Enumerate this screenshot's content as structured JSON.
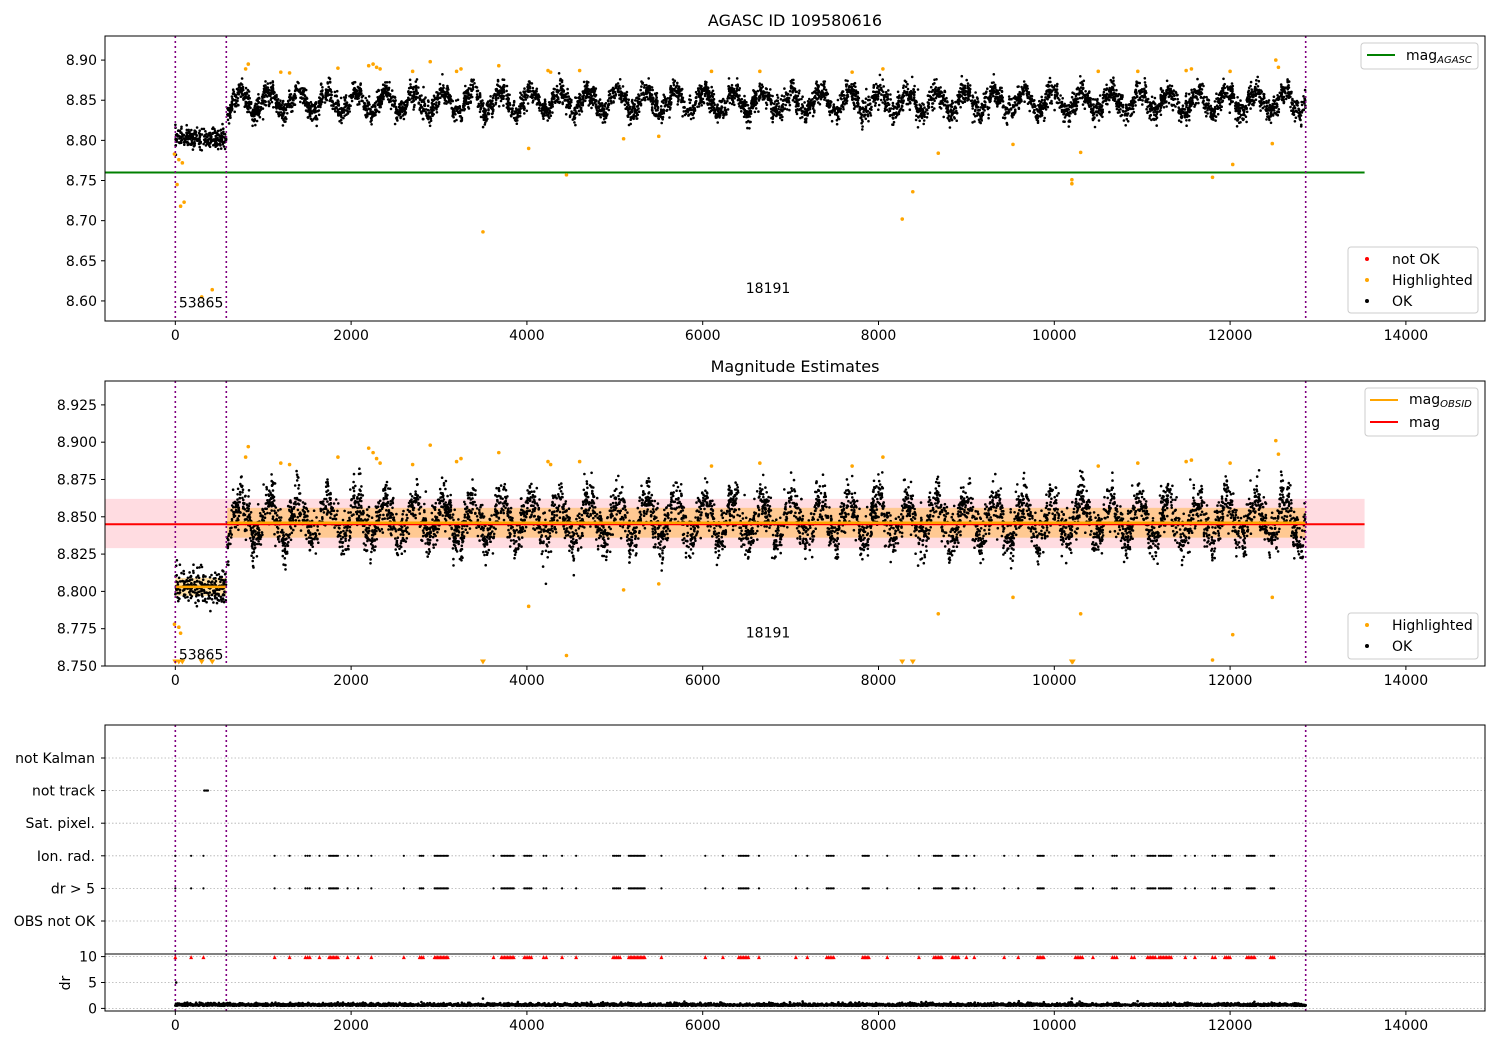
{
  "chart_data": [
    {
      "type": "scatter",
      "title": "AGASC ID 109580616",
      "xlim": [
        -800,
        14900
      ],
      "ylim": [
        8.575,
        8.93
      ],
      "x_ticks": [
        0,
        2000,
        4000,
        6000,
        8000,
        10000,
        12000,
        14000
      ],
      "y_ticks": [
        8.6,
        8.65,
        8.7,
        8.75,
        8.8,
        8.85,
        8.9
      ],
      "y_tick_decimals": 2,
      "grid": false,
      "vlines": [
        {
          "x": 0,
          "color": "#800080"
        },
        {
          "x": 580,
          "color": "#800080"
        },
        {
          "x": 12860,
          "color": "#800080"
        }
      ],
      "hlines": [
        {
          "y": 8.76,
          "x_range": [
            -800,
            13530
          ],
          "color": "#008000"
        }
      ],
      "annotations": [
        {
          "text": "53865",
          "x": 40,
          "y": 8.592
        },
        {
          "text": "18191",
          "x": 6490,
          "y": 8.61
        }
      ],
      "legend_upper": {
        "placement": "upper-right",
        "entries": [
          {
            "label": "mag",
            "sub": "AGASC",
            "color": "#008000",
            "kind": "line"
          }
        ]
      },
      "legend_lower": {
        "placement": "lower-right",
        "entries": [
          {
            "label": "not OK",
            "color": "#ff0000",
            "kind": "dot"
          },
          {
            "label": "Highlighted",
            "color": "#ffa500",
            "kind": "dot"
          },
          {
            "label": "OK",
            "color": "#000000",
            "kind": "dot"
          }
        ]
      },
      "series": [
        {
          "name": "OK",
          "color": "#000000",
          "pattern": "mag_ok"
        },
        {
          "name": "Highlighted",
          "color": "#ffa500",
          "points": [
            [
              -10,
              8.783
            ],
            [
              20,
              8.745
            ],
            [
              40,
              8.776
            ],
            [
              60,
              8.718
            ],
            [
              80,
              8.772
            ],
            [
              100,
              8.723
            ],
            [
              300,
              8.605
            ],
            [
              420,
              8.614
            ],
            [
              800,
              8.889
            ],
            [
              830,
              8.895
            ],
            [
              1200,
              8.885
            ],
            [
              1300,
              8.884
            ],
            [
              1850,
              8.89
            ],
            [
              2200,
              8.893
            ],
            [
              2250,
              8.895
            ],
            [
              2290,
              8.891
            ],
            [
              2330,
              8.889
            ],
            [
              2700,
              8.886
            ],
            [
              2900,
              8.898
            ],
            [
              3200,
              8.886
            ],
            [
              3250,
              8.889
            ],
            [
              3500,
              8.686
            ],
            [
              3680,
              8.893
            ],
            [
              4020,
              8.79
            ],
            [
              4240,
              8.887
            ],
            [
              4270,
              8.885
            ],
            [
              4450,
              8.757
            ],
            [
              4600,
              8.887
            ],
            [
              5100,
              8.802
            ],
            [
              5500,
              8.805
            ],
            [
              6100,
              8.886
            ],
            [
              6650,
              8.886
            ],
            [
              7700,
              8.885
            ],
            [
              8050,
              8.889
            ],
            [
              8270,
              8.702
            ],
            [
              8390,
              8.736
            ],
            [
              8680,
              8.784
            ],
            [
              9530,
              8.795
            ],
            [
              10200,
              8.746
            ],
            [
              10200,
              8.751
            ],
            [
              10300,
              8.785
            ],
            [
              10500,
              8.886
            ],
            [
              10950,
              8.886
            ],
            [
              11500,
              8.887
            ],
            [
              11560,
              8.889
            ],
            [
              11800,
              8.754
            ],
            [
              12000,
              8.886
            ],
            [
              12030,
              8.77
            ],
            [
              12480,
              8.796
            ],
            [
              12520,
              8.9
            ],
            [
              12550,
              8.891
            ]
          ]
        }
      ],
      "mag_ok": {
        "segments": [
          {
            "x_range": [
              0,
              580
            ],
            "base": 8.803,
            "noise": 0.006
          },
          {
            "x_range": [
              590,
              12860
            ],
            "base": 8.848,
            "wave_amp": 0.013,
            "wave_period": 330,
            "noise": 0.007
          }
        ]
      }
    },
    {
      "type": "scatter",
      "title": "Magnitude Estimates",
      "xlim": [
        -800,
        14900
      ],
      "ylim": [
        8.75,
        8.941
      ],
      "x_ticks": [
        0,
        2000,
        4000,
        6000,
        8000,
        10000,
        12000,
        14000
      ],
      "y_ticks": [
        8.75,
        8.775,
        8.8,
        8.825,
        8.85,
        8.875,
        8.9,
        8.925
      ],
      "y_tick_decimals": 3,
      "grid": false,
      "vlines": [
        {
          "x": 0,
          "color": "#800080"
        },
        {
          "x": 580,
          "color": "#800080"
        },
        {
          "x": 12860,
          "color": "#800080"
        }
      ],
      "band": {
        "y_range": [
          8.829,
          8.862
        ],
        "x_range": [
          -800,
          13530
        ],
        "color": "#ffc0c8"
      },
      "hlines": [
        {
          "y": 8.845,
          "x_range": [
            -800,
            13530
          ],
          "color": "#ff0000"
        }
      ],
      "obsid_segments": [
        {
          "x_range": [
            0,
            580
          ],
          "y": 8.803,
          "y_band": [
            8.797,
            8.809
          ]
        },
        {
          "x_range": [
            590,
            12860
          ],
          "y": 8.846,
          "y_band": [
            8.836,
            8.856
          ]
        }
      ],
      "annotations": [
        {
          "text": "53865",
          "x": 40,
          "y": 8.7545
        },
        {
          "text": "18191",
          "x": 6490,
          "y": 8.769
        }
      ],
      "legend_upper": {
        "placement": "upper-right",
        "entries": [
          {
            "label": "mag",
            "sub": "OBSID",
            "color": "#ffa500",
            "kind": "line"
          },
          {
            "label": "mag",
            "color": "#ff0000",
            "kind": "line"
          }
        ]
      },
      "legend_lower": {
        "placement": "lower-right",
        "entries": [
          {
            "label": "Highlighted",
            "color": "#ffa500",
            "kind": "dot"
          },
          {
            "label": "OK",
            "color": "#000000",
            "kind": "dot"
          }
        ]
      },
      "series": [
        {
          "name": "OK",
          "color": "#000000",
          "pattern": "mag_ok"
        },
        {
          "name": "Highlighted",
          "color": "#ffa500",
          "points": [
            [
              -10,
              8.778
            ],
            [
              40,
              8.776
            ],
            [
              60,
              8.772
            ],
            [
              800,
              8.89
            ],
            [
              830,
              8.897
            ],
            [
              1200,
              8.886
            ],
            [
              1300,
              8.885
            ],
            [
              1850,
              8.89
            ],
            [
              2200,
              8.896
            ],
            [
              2250,
              8.893
            ],
            [
              2290,
              8.889
            ],
            [
              2330,
              8.886
            ],
            [
              2700,
              8.885
            ],
            [
              2900,
              8.898
            ],
            [
              3200,
              8.887
            ],
            [
              3250,
              8.889
            ],
            [
              3680,
              8.893
            ],
            [
              4020,
              8.79
            ],
            [
              4240,
              8.887
            ],
            [
              4270,
              8.885
            ],
            [
              4450,
              8.757
            ],
            [
              4600,
              8.887
            ],
            [
              5100,
              8.801
            ],
            [
              5500,
              8.805
            ],
            [
              6100,
              8.884
            ],
            [
              6650,
              8.886
            ],
            [
              7700,
              8.884
            ],
            [
              8050,
              8.89
            ],
            [
              8680,
              8.785
            ],
            [
              9530,
              8.796
            ],
            [
              10300,
              8.785
            ],
            [
              10500,
              8.884
            ],
            [
              10950,
              8.886
            ],
            [
              11500,
              8.887
            ],
            [
              11560,
              8.888
            ],
            [
              11800,
              8.754
            ],
            [
              12000,
              8.886
            ],
            [
              12030,
              8.771
            ],
            [
              12480,
              8.796
            ],
            [
              12520,
              8.901
            ],
            [
              12550,
              8.892
            ]
          ]
        },
        {
          "name": "Highlighted-below",
          "color": "#ffa500",
          "marker": "triangle-down",
          "points": [
            [
              0,
              8.751
            ],
            [
              40,
              8.751
            ],
            [
              80,
              8.751
            ],
            [
              300,
              8.751
            ],
            [
              420,
              8.751
            ],
            [
              3500,
              8.751
            ],
            [
              8270,
              8.751
            ],
            [
              8390,
              8.751
            ],
            [
              10200,
              8.751
            ],
            [
              10210,
              8.751
            ]
          ]
        }
      ],
      "mag_ok": {
        "segments": [
          {
            "x_range": [
              0,
              580
            ],
            "base": 8.803,
            "noise": 0.006
          },
          {
            "x_range": [
              590,
              12860
            ],
            "base": 8.848,
            "wave_amp": 0.013,
            "wave_period": 330,
            "noise": 0.007
          }
        ]
      }
    },
    {
      "type": "scatter",
      "title": "",
      "xlim": [
        -800,
        14900
      ],
      "categories": [
        "not Kalman",
        "not track",
        "Sat. pixel.",
        "Ion. rad.",
        "dr > 5",
        "OBS not OK"
      ],
      "vlines": [
        {
          "x": 0,
          "color": "#800080"
        },
        {
          "x": 580,
          "color": "#800080"
        },
        {
          "x": 12860,
          "color": "#800080"
        }
      ],
      "grid": true,
      "series": [
        {
          "name": "not track",
          "color": "#000000",
          "points_x": [
            330,
            350,
            370
          ]
        },
        {
          "name": "Ion. rad.",
          "color": "#000000",
          "clusters": [
            [
              0,
              0
            ],
            [
              180,
              180
            ],
            [
              320,
              330
            ],
            [
              1130,
              1130
            ],
            [
              1300,
              1300
            ],
            [
              1480,
              1530
            ],
            [
              1640,
              1650
            ],
            [
              1750,
              1850
            ],
            [
              1960,
              1980
            ],
            [
              2080,
              2090
            ],
            [
              2230,
              2240
            ],
            [
              2600,
              2600
            ],
            [
              2780,
              2820
            ],
            [
              2950,
              3100
            ],
            [
              3620,
              3640
            ],
            [
              3710,
              3850
            ],
            [
              3970,
              4050
            ],
            [
              4190,
              4220
            ],
            [
              4400,
              4420
            ],
            [
              4560,
              4570
            ],
            [
              4980,
              5060
            ],
            [
              5160,
              5340
            ],
            [
              5530,
              5550
            ],
            [
              6030,
              6050
            ],
            [
              6230,
              6250
            ],
            [
              6410,
              6520
            ],
            [
              6640,
              6660
            ],
            [
              7060,
              7070
            ],
            [
              7190,
              7210
            ],
            [
              7410,
              7490
            ],
            [
              7820,
              7890
            ],
            [
              8100,
              8110
            ],
            [
              8460,
              8480
            ],
            [
              8630,
              8720
            ],
            [
              8840,
              8910
            ],
            [
              9000,
              9020
            ],
            [
              9090,
              9110
            ],
            [
              9430,
              9440
            ],
            [
              9590,
              9610
            ],
            [
              9810,
              9880
            ],
            [
              10240,
              10320
            ],
            [
              10440,
              10460
            ],
            [
              10660,
              10710
            ],
            [
              10880,
              10910
            ],
            [
              11060,
              11150
            ],
            [
              11190,
              11330
            ],
            [
              11490,
              11510
            ],
            [
              11600,
              11610
            ],
            [
              11800,
              11830
            ],
            [
              11940,
              12000
            ],
            [
              12190,
              12280
            ],
            [
              12460,
              12500
            ]
          ]
        },
        {
          "name": "dr > 5",
          "color": "#000000",
          "same_as": "Ion. rad."
        }
      ]
    },
    {
      "type": "scatter",
      "ylabel": "dr",
      "xlim": [
        -800,
        14900
      ],
      "ylim": [
        -0.5,
        10.5
      ],
      "x_ticks": [
        0,
        2000,
        4000,
        6000,
        8000,
        10000,
        12000,
        14000
      ],
      "y_ticks": [
        0,
        5,
        10
      ],
      "grid": true,
      "vlines": [
        {
          "x": 0,
          "color": "#800080"
        },
        {
          "x": 580,
          "color": "#800080"
        },
        {
          "x": 12860,
          "color": "#800080"
        }
      ],
      "series": [
        {
          "name": "dr",
          "color": "#000000",
          "base": 0.5,
          "x_range": [
            0,
            12860
          ],
          "spikes": [
            [
              10,
              5.0
            ],
            [
              3500,
              1.9
            ],
            [
              10200,
              1.9
            ]
          ]
        },
        {
          "name": "dr-capped",
          "color": "#ff0000",
          "marker": "triangle-up",
          "y": 9.9,
          "same_as": "Ion. rad."
        }
      ]
    }
  ]
}
